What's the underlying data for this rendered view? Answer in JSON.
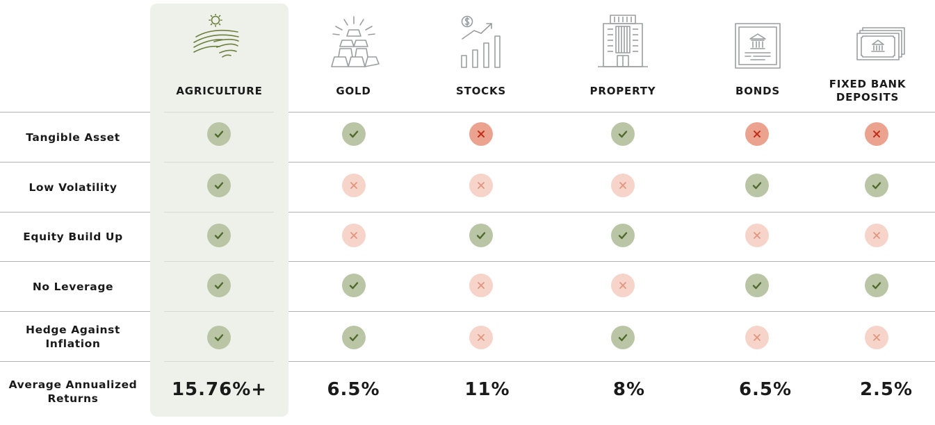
{
  "columns": [
    {
      "key": "agriculture",
      "title": "AGRICULTURE",
      "icon": "farm-field-sun-icon",
      "highlighted": true
    },
    {
      "key": "gold",
      "title": "GOLD",
      "icon": "gold-bars-icon"
    },
    {
      "key": "stocks",
      "title": "STOCKS",
      "icon": "stock-growth-chart-icon"
    },
    {
      "key": "property",
      "title": "PROPERTY",
      "icon": "office-building-icon"
    },
    {
      "key": "bonds",
      "title": "BONDS",
      "icon": "bond-certificate-icon"
    },
    {
      "key": "fixed_bank_deposits",
      "title": "FIXED BANK DEPOSITS",
      "icon": "bank-banknote-icon"
    }
  ],
  "rows": [
    {
      "label": "Tangible Asset",
      "marks": [
        "check",
        "check",
        "cross-strong",
        "check",
        "cross-strong",
        "cross-strong"
      ]
    },
    {
      "label": "Low Volatility",
      "marks": [
        "check",
        "cross",
        "cross",
        "cross",
        "check",
        "check"
      ]
    },
    {
      "label": "Equity Build Up",
      "marks": [
        "check",
        "cross",
        "check",
        "check",
        "cross",
        "cross"
      ]
    },
    {
      "label": "No Leverage",
      "marks": [
        "check",
        "check",
        "cross",
        "cross",
        "check",
        "check"
      ]
    },
    {
      "label": "Hedge Against Inflation",
      "marks": [
        "check",
        "check",
        "cross",
        "check",
        "cross",
        "cross"
      ]
    }
  ],
  "returns": {
    "label": "Average Annualized Returns",
    "values": [
      "15.76%+",
      "6.5%",
      "11%",
      "8%",
      "6.5%",
      "2.5%"
    ]
  },
  "colors": {
    "highlight_bg": "#eef1ea",
    "check_bg": "#b9c5a5",
    "check_stroke": "#4f6a2c",
    "cross_bg": "#f6d4c9",
    "cross_stroke": "#e0957f",
    "cross_strong_bg": "#eba28e",
    "cross_strong_stroke": "#c0301b",
    "icon_green": "#6b7f3e",
    "icon_grey": "#9a9c9e"
  }
}
